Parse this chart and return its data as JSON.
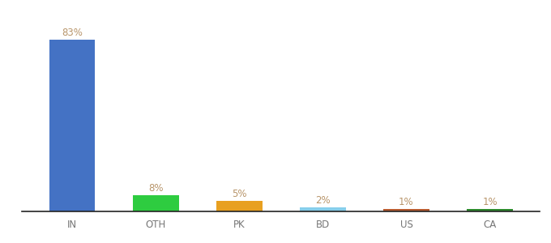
{
  "categories": [
    "IN",
    "OTH",
    "PK",
    "BD",
    "US",
    "CA"
  ],
  "values": [
    83,
    8,
    5,
    2,
    1,
    1
  ],
  "bar_colors": [
    "#4472c4",
    "#2ecc40",
    "#e8a020",
    "#87ceeb",
    "#b85c30",
    "#2d8a2d"
  ],
  "label_color": "#b8956a",
  "background_color": "#ffffff",
  "ylim": [
    0,
    93
  ],
  "value_labels": [
    "83%",
    "8%",
    "5%",
    "2%",
    "1%",
    "1%"
  ],
  "bar_width": 0.55,
  "label_fontsize": 8.5,
  "tick_fontsize": 8.5,
  "tick_color": "#777777"
}
